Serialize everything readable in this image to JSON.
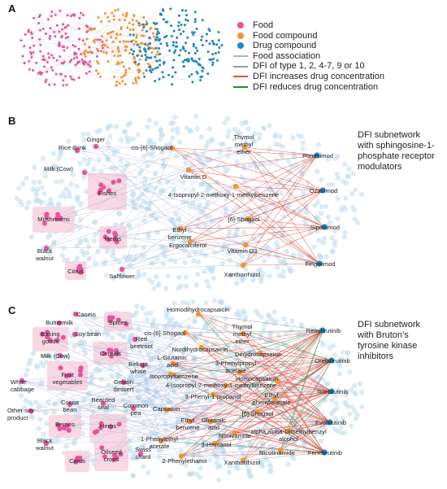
{
  "panels": {
    "a": "A",
    "b": "B",
    "c": "C"
  },
  "colors": {
    "food": "#e8529f",
    "food_compound": "#f29430",
    "drug_compound": "#1f86c2",
    "food_association": "#aab4d8",
    "dfi_generic": "#9a9a9a",
    "dfi_increase": "#e8483b",
    "dfi_reduce": "#1e8f3e",
    "halo": "#bfdcef",
    "box": "#f8d8e3"
  },
  "legend": [
    {
      "kind": "dot",
      "color_key": "food",
      "label": "Food"
    },
    {
      "kind": "dot",
      "color_key": "food_compound",
      "label": "Food compound"
    },
    {
      "kind": "dot",
      "color_key": "drug_compound",
      "label": "Drug compound"
    },
    {
      "kind": "line",
      "color_key": "food_association",
      "label": "Food association"
    },
    {
      "kind": "line",
      "color_key": "dfi_generic",
      "label": "DFI of type 1, 2, 4-7, 9 or 10"
    },
    {
      "kind": "line",
      "color_key": "dfi_increase",
      "label": "DFI increases drug concentration"
    },
    {
      "kind": "line",
      "color_key": "dfi_reduce",
      "label": "DFI reduces drug concentration"
    }
  ],
  "captions": {
    "b": [
      "DFI subnetwork",
      "with sphingosine-1-",
      "phosphate receptor",
      "modulators"
    ],
    "c": [
      "DFI subnetwork",
      "with Bruton’s",
      "tyrosine kinase",
      "inhibitors"
    ]
  },
  "network_b": {
    "foods": [
      {
        "id": "ginger",
        "label": [
          "Ginger"
        ]
      },
      {
        "id": "rice_drink",
        "label": [
          "Rice drink"
        ]
      },
      {
        "id": "milk_cow",
        "label": [
          "Milk (Cow)"
        ]
      },
      {
        "id": "fishes",
        "label": [
          "Fishes"
        ],
        "group": true
      },
      {
        "id": "mushrooms",
        "label": [
          "Mushrooms"
        ],
        "group": true
      },
      {
        "id": "herbs",
        "label": [
          "Herbs"
        ],
        "group": true
      },
      {
        "id": "black_walnut",
        "label": [
          "Black",
          "walnut"
        ]
      },
      {
        "id": "citrus",
        "label": [
          "Citrus"
        ],
        "group": true
      },
      {
        "id": "safflower",
        "label": [
          "Safflower"
        ]
      }
    ],
    "compounds": [
      {
        "id": "cis6shogaol",
        "label": [
          "cis-[6]-Shogaol"
        ]
      },
      {
        "id": "thymol",
        "label": [
          "Thymol",
          "methyl",
          "ether"
        ]
      },
      {
        "id": "vitd",
        "label": [
          "Vitamin D"
        ]
      },
      {
        "id": "isopropyl",
        "label": [
          "4-Isopropyl-2-methoxy-1-methylbenzene"
        ]
      },
      {
        "id": "ethylbenzene",
        "label": [
          "Ethyl",
          "benzene"
        ]
      },
      {
        "id": "shogaol6",
        "label": [
          "[6]-Shogaol"
        ]
      },
      {
        "id": "vitd3",
        "label": [
          "Vitamin D3"
        ]
      },
      {
        "id": "ergocalciferol",
        "label": [
          "Ergocalciferol"
        ]
      },
      {
        "id": "xanthorrhizol",
        "label": [
          "Xanthorrhizol"
        ]
      }
    ],
    "drugs": [
      {
        "id": "ponesimod",
        "label": "Ponesimod"
      },
      {
        "id": "ozanimod",
        "label": "Ozanimod"
      },
      {
        "id": "siponimod",
        "label": "Siponimod"
      },
      {
        "id": "fingolimod",
        "label": "Fingolimod"
      }
    ]
  },
  "network_c": {
    "foods": [
      {
        "id": "casein",
        "label": [
          "Casein"
        ]
      },
      {
        "id": "buttermilk",
        "label": [
          "Buttermilk"
        ]
      },
      {
        "id": "spices",
        "label": [
          "Spices"
        ],
        "group": true
      },
      {
        "id": "baking_goods",
        "label": [
          "Baking",
          "goods"
        ],
        "group": true
      },
      {
        "id": "soy_bean",
        "label": [
          "Soy bean"
        ]
      },
      {
        "id": "red_beetroot",
        "label": [
          "Red",
          "beetroot"
        ]
      },
      {
        "id": "milk_cow",
        "label": [
          "Milk (Cow)"
        ]
      },
      {
        "id": "cereals",
        "label": [
          "Cereals"
        ],
        "group": true
      },
      {
        "id": "beluga_whale",
        "label": [
          "Beluga",
          "whale"
        ]
      },
      {
        "id": "fruit_vegetables",
        "label": [
          "Fruit",
          "vegetables"
        ],
        "group": true
      },
      {
        "id": "white_cabbage",
        "label": [
          "White",
          "cabbage"
        ]
      },
      {
        "id": "gelatin_dessert",
        "label": [
          "Gelatin",
          "dessert"
        ]
      },
      {
        "id": "other_soy",
        "label": [
          "Other soy",
          "product"
        ]
      },
      {
        "id": "cocoa_bean",
        "label": [
          "Cocoa",
          "bean"
        ]
      },
      {
        "id": "bearded_seal",
        "label": [
          "Bearded",
          "seal"
        ]
      },
      {
        "id": "common_pea",
        "label": [
          "Common",
          "pea"
        ]
      },
      {
        "id": "berries",
        "label": [
          "Berries"
        ],
        "group": true
      },
      {
        "id": "herbs",
        "label": [
          "Herbs"
        ],
        "group": true
      },
      {
        "id": "black_walnut",
        "label": [
          "Black",
          "walnut"
        ]
      },
      {
        "id": "citrus",
        "label": [
          "Citrus"
        ],
        "group": true
      },
      {
        "id": "oilseed_crops",
        "label": [
          "Oilseed",
          "crops"
        ],
        "group": true
      },
      {
        "id": "swiss_chard",
        "label": [
          "Swiss",
          "chard"
        ]
      }
    ],
    "compounds": [
      {
        "id": "homodihydrocapsaicin",
        "label": [
          "Homodihydrocapsaicin"
        ]
      },
      {
        "id": "cis6shogaol",
        "label": [
          "cis-[6]-Shogaol"
        ]
      },
      {
        "id": "thymol",
        "label": [
          "Thymol",
          "methyl",
          "ether"
        ]
      },
      {
        "id": "nordihydrocapsaicin",
        "label": [
          "Nordihydrocapsaicin"
        ]
      },
      {
        "id": "dihydrocapsaicin",
        "label": [
          "Dihydrocapsaicin"
        ]
      },
      {
        "id": "lglutamic",
        "label": [
          "L-Glutamic",
          "acid"
        ]
      },
      {
        "id": "phenylpropyl_acetate",
        "label": [
          "3-Phenylpropyl",
          "acetate"
        ]
      },
      {
        "id": "isopropylbenzene",
        "label": [
          "Isopropylbenzene"
        ]
      },
      {
        "id": "isopropyl",
        "label": [
          "4-Isopropyl-2-methoxy-1-methylbenzene"
        ]
      },
      {
        "id": "homocapsaicin",
        "label": [
          "Homocapsaicin"
        ]
      },
      {
        "id": "phenylpropanol",
        "label": [
          "3-Phenyl-1-propanol"
        ]
      },
      {
        "id": "ethyl_phenylacetate",
        "label": [
          "Ethyl",
          "phenylacetate"
        ]
      },
      {
        "id": "capsaicin",
        "label": [
          "Capsaicin"
        ]
      },
      {
        "id": "glutamic",
        "label": [
          "Glutamic",
          "acid"
        ]
      },
      {
        "id": "shogaol6",
        "label": [
          "[6]-Shogaol"
        ]
      },
      {
        "id": "ethylbenzene",
        "label": [
          "Ethyl",
          "benzene"
        ]
      },
      {
        "id": "nonivamide",
        "label": [
          "Nonivamide"
        ]
      },
      {
        "id": "dimethylbenzyl",
        "label": [
          "alpha,alpha-Dimethylbenzyl",
          "alcohol"
        ]
      },
      {
        "id": "phenylethyl_acetate",
        "label": [
          "1-Phenylethyl",
          "acetate"
        ]
      },
      {
        "id": "heptanol",
        "label": [
          "3-Heptanol"
        ]
      },
      {
        "id": "nicotinamide",
        "label": [
          "Nicotinamide"
        ]
      },
      {
        "id": "phenylethanol",
        "label": [
          "2-Phenylethanol"
        ]
      },
      {
        "id": "xanthorrhizol",
        "label": [
          "Xanthorrhizol"
        ]
      }
    ],
    "drugs": [
      {
        "id": "remibrutinib",
        "label": "Remibrutinib"
      },
      {
        "id": "orelabrutinib",
        "label": "Orelabrutinib"
      },
      {
        "id": "tolebrutinib",
        "label": "Tolebrutinib"
      },
      {
        "id": "evobrutinib",
        "label": "Evobrutinib"
      },
      {
        "id": "fenebrutinib",
        "label": "Fenebrutinib"
      }
    ]
  }
}
